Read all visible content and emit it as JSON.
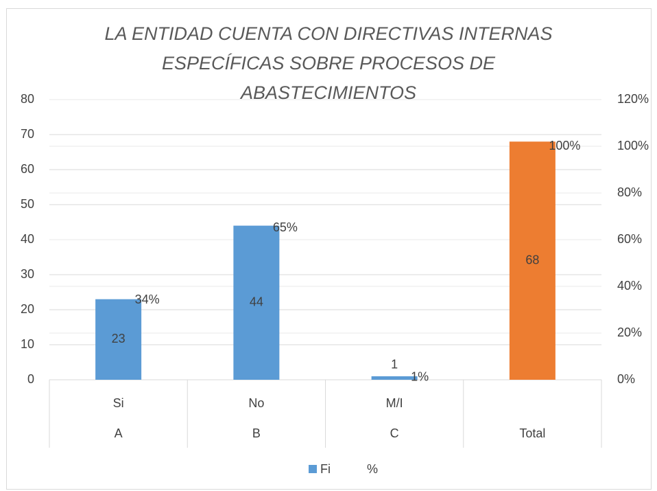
{
  "chart_data": {
    "type": "bar",
    "title": "LA ENTIDAD CUENTA CON DIRECTIVAS INTERNAS ESPECÍFICAS SOBRE PROCESOS DE ABASTECIMIENTOS",
    "categories": [
      "Si",
      "No",
      "M/I",
      null
    ],
    "category_groups": [
      "A",
      "B",
      "C",
      "Total"
    ],
    "series": [
      {
        "name": "Fi",
        "color": "#5b9bd5",
        "point_colors": [
          "#5b9bd5",
          "#5b9bd5",
          "#5b9bd5",
          "#ed7d31"
        ],
        "values": [
          23,
          44,
          1,
          68
        ]
      },
      {
        "name": "%",
        "axis": "y2",
        "values": [
          34,
          65,
          1,
          100
        ],
        "value_labels": [
          "34%",
          "65%",
          "1%",
          "100%"
        ]
      }
    ],
    "ylim": [
      0,
      80
    ],
    "yticks": [
      0,
      10,
      20,
      30,
      40,
      50,
      60,
      70,
      80
    ],
    "y2lim": [
      0,
      120
    ],
    "y2ticks": [
      {
        "value": 0,
        "label": "0%"
      },
      {
        "value": 20,
        "label": "20%"
      },
      {
        "value": 40,
        "label": "40%"
      },
      {
        "value": 60,
        "label": "60%"
      },
      {
        "value": 80,
        "label": "80%"
      },
      {
        "value": 100,
        "label": "100%"
      },
      {
        "value": 120,
        "label": "120%"
      }
    ],
    "grid": true,
    "legend": "bottom"
  }
}
